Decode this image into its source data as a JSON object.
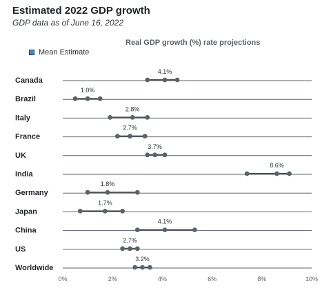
{
  "header": {
    "title": "Estimated 2022 GDP growth",
    "subtitle": "GDP data as of June 16, 2022"
  },
  "legend": {
    "label": "Mean Estimate",
    "color": "#4e86c6"
  },
  "chart_data": {
    "type": "scatter",
    "title": "Real GDP growth (%) rate projections",
    "xlim": [
      0,
      10
    ],
    "xticks": [
      "0%",
      "2%",
      "4%",
      "6%",
      "8%",
      "10%"
    ],
    "grid": false,
    "legend_position": "top-left",
    "colors": {
      "baseline": "#5b6168",
      "point": "#5c6368",
      "range": "#4a5055"
    },
    "series": [
      {
        "category": "Canada",
        "low": 3.4,
        "mean": 4.1,
        "high": 4.6,
        "label": "4.1%"
      },
      {
        "category": "Brazil",
        "low": 0.5,
        "mean": 1.0,
        "high": 1.5,
        "label": "1.0%"
      },
      {
        "category": "Italy",
        "low": 1.9,
        "mean": 2.8,
        "high": 3.4,
        "label": "2.8%"
      },
      {
        "category": "France",
        "low": 2.2,
        "mean": 2.7,
        "high": 3.3,
        "label": "2.7%"
      },
      {
        "category": "UK",
        "low": 3.4,
        "mean": 3.7,
        "high": 4.1,
        "label": "3.7%"
      },
      {
        "category": "India",
        "low": 7.4,
        "mean": 8.6,
        "high": 9.1,
        "label": "8.6%"
      },
      {
        "category": "Germany",
        "low": 1.0,
        "mean": 1.8,
        "high": 3.0,
        "label": "1.8%"
      },
      {
        "category": "Japan",
        "low": 0.7,
        "mean": 1.7,
        "high": 2.4,
        "label": "1.7%"
      },
      {
        "category": "China",
        "low": 3.0,
        "mean": 4.1,
        "high": 5.3,
        "label": "4.1%"
      },
      {
        "category": "US",
        "low": 2.4,
        "mean": 2.7,
        "high": 3.0,
        "label": "2.7%"
      },
      {
        "category": "Worldwide",
        "low": 2.9,
        "mean": 3.2,
        "high": 3.5,
        "label": "3.2%"
      }
    ]
  }
}
